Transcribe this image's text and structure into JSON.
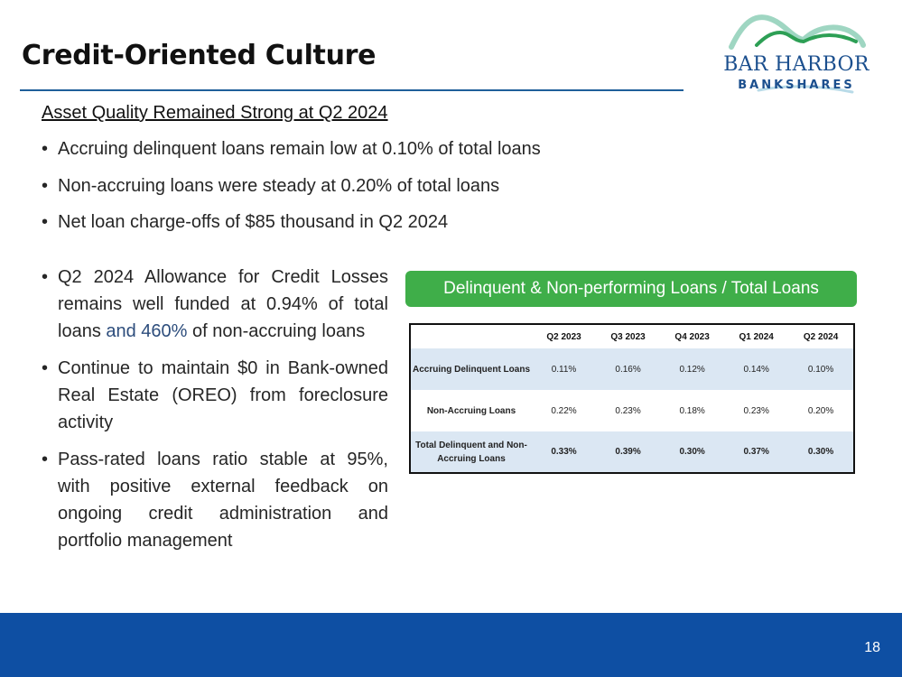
{
  "slide": {
    "title": "Credit-Oriented Culture",
    "page_number": "18"
  },
  "logo": {
    "line1": "BAR HARBOR",
    "line2": "BANKSHARES"
  },
  "subheading": "Asset Quality Remained Strong at Q2 2024",
  "top_bullets": [
    "Accruing delinquent loans remain low at 0.10% of total loans",
    "Non-accruing loans were steady at 0.20% of total loans",
    "Net loan charge-offs of $85 thousand in Q2 2024"
  ],
  "left_bullets": {
    "b1_part1": "Q2 2024 Allowance for Credit Losses remains well funded at 0.94% of total loans ",
    "b1_part2": "and 460%",
    "b1_part3": " of non-accruing loans",
    "b2": "Continue to maintain $0 in Bank-owned Real Estate (OREO) from foreclosure activity",
    "b3": "Pass-rated loans ratio stable at 95%, with positive external feedback on ongoing credit administration and portfolio management"
  },
  "table": {
    "banner": "Delinquent & Non-performing Loans / Total Loans",
    "columns": [
      "",
      "Q2 2023",
      "Q3 2023",
      "Q4 2023",
      "Q1 2024",
      "Q2 2024"
    ],
    "rows": [
      {
        "label": "Accruing Delinquent Loans",
        "values": [
          "0.11%",
          "0.16%",
          "0.12%",
          "0.14%",
          "0.10%"
        ]
      },
      {
        "label": "Non-Accruing Loans",
        "values": [
          "0.22%",
          "0.23%",
          "0.18%",
          "0.23%",
          "0.20%"
        ]
      },
      {
        "label": "Total Delinquent and Non-Accruing Loans",
        "values": [
          "0.33%",
          "0.39%",
          "0.30%",
          "0.37%",
          "0.30%"
        ]
      }
    ]
  },
  "colors": {
    "accent_blue": "#1f5f9a",
    "banner_green": "#3fae49",
    "footer_blue": "#0e4fa3",
    "table_row_shade": "#dbe7f3"
  }
}
